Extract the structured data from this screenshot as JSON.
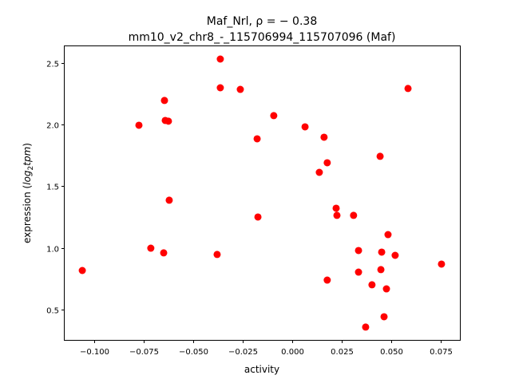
{
  "chart_data": {
    "type": "scatter",
    "title_line1": "Maf_Nrl, ρ = − 0.38",
    "title_line2": "mm10_v2_chr8_-_115706994_115707096 (Maf)",
    "xlabel": "activity",
    "ylabel_prefix": "expression (",
    "ylabel_math": "log",
    "ylabel_sub": "2",
    "ylabel_math2": "tpm",
    "ylabel_suffix": ")",
    "xlim": [
      -0.1149,
      0.0847
    ],
    "ylim": [
      0.254,
      2.642
    ],
    "xticks": [
      -0.1,
      -0.075,
      -0.05,
      -0.025,
      0.0,
      0.025,
      0.05,
      0.075
    ],
    "xtick_labels": [
      "−0.100",
      "−0.075",
      "−0.050",
      "−0.025",
      "0.000",
      "0.025",
      "0.050",
      "0.075"
    ],
    "yticks": [
      0.5,
      1.0,
      1.5,
      2.0,
      2.5
    ],
    "ytick_labels": [
      "0.5",
      "1.0",
      "1.5",
      "2.0",
      "2.5"
    ],
    "marker_color": "#ff0000",
    "grid": false,
    "points": [
      [
        -0.106,
        0.817
      ],
      [
        -0.0774,
        1.995
      ],
      [
        -0.0714,
        0.998
      ],
      [
        -0.0649,
        0.96
      ],
      [
        -0.0645,
        2.196
      ],
      [
        -0.0641,
        2.034
      ],
      [
        -0.0625,
        2.028
      ],
      [
        -0.0621,
        1.387
      ],
      [
        -0.0379,
        0.947
      ],
      [
        -0.0363,
        2.532
      ],
      [
        -0.0363,
        2.299
      ],
      [
        -0.0262,
        2.286
      ],
      [
        -0.0177,
        1.885
      ],
      [
        -0.0173,
        1.251
      ],
      [
        -0.0093,
        2.073
      ],
      [
        0.0065,
        1.982
      ],
      [
        0.0161,
        1.898
      ],
      [
        0.0177,
        1.691
      ],
      [
        0.0137,
        1.613
      ],
      [
        0.0177,
        0.739
      ],
      [
        0.0222,
        1.322
      ],
      [
        0.0226,
        1.264
      ],
      [
        0.031,
        1.264
      ],
      [
        0.0335,
        0.979
      ],
      [
        0.0335,
        0.804
      ],
      [
        0.0371,
        0.358
      ],
      [
        0.0403,
        0.701
      ],
      [
        0.0444,
        1.743
      ],
      [
        0.0452,
        0.966
      ],
      [
        0.0448,
        0.824
      ],
      [
        0.0464,
        0.442
      ],
      [
        0.0476,
        0.668
      ],
      [
        0.0484,
        1.108
      ],
      [
        0.052,
        0.94
      ],
      [
        0.0585,
        2.293
      ],
      [
        0.0754,
        0.869
      ]
    ]
  }
}
